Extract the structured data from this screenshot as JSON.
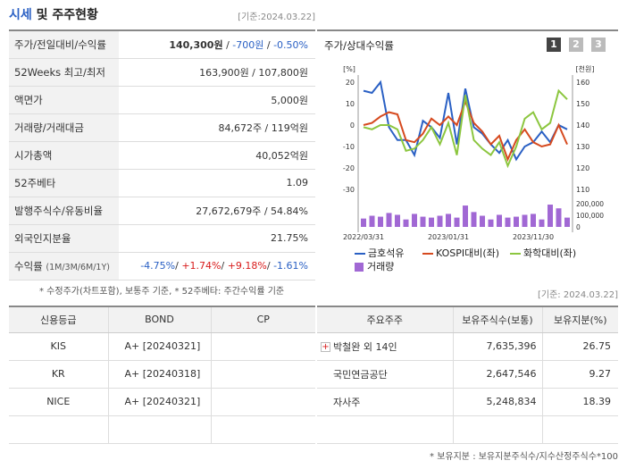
{
  "header": {
    "title_main": "시세",
    "title_rest": " 및 주주현황",
    "date": "[기준:2024.03.22]"
  },
  "quote_rows": [
    {
      "label": "주가/전일대비/수익률",
      "value_parts": [
        {
          "text": "140,300원",
          "cls": "strong"
        },
        {
          "text": " / ",
          "cls": ""
        },
        {
          "text": "-700원",
          "cls": "down"
        },
        {
          "text": " / ",
          "cls": ""
        },
        {
          "text": "-0.50%",
          "cls": "down"
        }
      ]
    },
    {
      "label": "52Weeks 최고/최저",
      "value": "163,900원 / 107,800원"
    },
    {
      "label": "액면가",
      "value": "5,000원"
    },
    {
      "label": "거래량/거래대금",
      "value": "84,672주 / 119억원"
    },
    {
      "label": "시가총액",
      "value": "40,052억원"
    },
    {
      "label": "52주베타",
      "value": "1.09"
    },
    {
      "label": "발행주식수/유동비율",
      "value": "27,672,679주 / 54.84%"
    },
    {
      "label": "외국인지분율",
      "value": "21.75%"
    },
    {
      "label": "수익률",
      "label_sub": "(1M/3M/6M/1Y)",
      "value_parts": [
        {
          "text": "-4.75%",
          "cls": "down"
        },
        {
          "text": "/ ",
          "cls": ""
        },
        {
          "text": "+1.74%",
          "cls": "up"
        },
        {
          "text": "/ ",
          "cls": ""
        },
        {
          "text": "+9.18%",
          "cls": "up"
        },
        {
          "text": "/ ",
          "cls": ""
        },
        {
          "text": "-1.61%",
          "cls": "down"
        }
      ]
    }
  ],
  "note_left": "* 수정주가(차트포함), 보통주 기준, * 52주베타: 주간수익률 기준",
  "chart": {
    "title": "주가/상대수익률",
    "pages": [
      "1",
      "2",
      "3"
    ],
    "left_unit": "[%]",
    "right_unit": "[천원]",
    "left_ticks": [
      "20",
      "10",
      "0",
      "-10",
      "-20",
      "-30"
    ],
    "right_ticks": [
      "160",
      "150",
      "140",
      "130",
      "120",
      "110"
    ],
    "vol_ticks": [
      "200,000",
      "100,000",
      "0"
    ],
    "x_ticks": [
      "2022/03/31",
      "2023/01/31",
      "2023/11/30"
    ],
    "legend": [
      {
        "name": "금호석유",
        "color": "#2a60c4"
      },
      {
        "name": "KOSPI대비(좌)",
        "color": "#d64a1f"
      },
      {
        "name": "화학대비(좌)",
        "color": "#8cc63f"
      },
      {
        "name": "거래량",
        "color": "#a168d4"
      }
    ]
  },
  "chart_data": {
    "type": "line",
    "x": [
      "2022/03/31",
      "",
      "",
      "",
      "",
      "",
      "",
      "",
      "",
      "",
      "2023/01/31",
      "",
      "",
      "",
      "",
      "",
      "",
      "",
      "",
      "",
      "2023/11/30",
      "",
      "",
      "",
      ""
    ],
    "ylim_left": [
      -30,
      20
    ],
    "ylim_right": [
      110,
      160
    ],
    "series": [
      {
        "name": "금호석유",
        "axis": "right",
        "values": [
          156,
          155,
          160,
          139,
          133,
          133,
          126,
          142,
          139,
          134,
          155,
          131,
          157,
          139,
          136,
          131,
          127,
          133,
          124,
          130,
          132,
          137,
          132,
          140,
          138
        ]
      },
      {
        "name": "KOSPI대비(좌)",
        "axis": "left",
        "values": [
          0,
          1,
          4,
          6,
          5,
          -7,
          -8,
          -4,
          3,
          0,
          4,
          0,
          11,
          1,
          -3,
          -9,
          -5,
          -16,
          -7,
          -2,
          -8,
          -10,
          -9,
          0,
          -9
        ]
      },
      {
        "name": "화학대비(좌)",
        "axis": "left",
        "values": [
          -1,
          -2,
          0,
          0,
          -2,
          -12,
          -11,
          -7,
          -1,
          -9,
          1,
          -14,
          14,
          -7,
          -11,
          -14,
          -8,
          -19,
          -10,
          3,
          6,
          -2,
          1,
          16,
          12
        ]
      },
      {
        "name": "거래량",
        "axis": "volume",
        "values": [
          90000,
          120000,
          110000,
          150000,
          130000,
          80000,
          140000,
          110000,
          100000,
          120000,
          140000,
          100000,
          230000,
          160000,
          120000,
          80000,
          130000,
          100000,
          110000,
          130000,
          140000,
          80000,
          240000,
          200000,
          100000
        ]
      }
    ]
  },
  "date2": "[기준: 2024.03.22]",
  "credit": {
    "headers": [
      "신용등급",
      "BOND",
      "CP"
    ],
    "rows": [
      [
        "KIS",
        "A+   [20240321]",
        ""
      ],
      [
        "KR",
        "A+   [20240318]",
        ""
      ],
      [
        "NICE",
        "A+   [20240321]",
        ""
      ],
      [
        "",
        "",
        ""
      ]
    ]
  },
  "holders": {
    "headers": [
      "주요주주",
      "보유주식수(보통)",
      "보유지분(%)"
    ],
    "rows": [
      {
        "name": "박철완 외 14인",
        "shares": "7,635,396",
        "pct": "26.75",
        "expand": "+"
      },
      {
        "name": "국민연금공단",
        "shares": "2,647,546",
        "pct": "9.27"
      },
      {
        "name": "자사주",
        "shares": "5,248,834",
        "pct": "18.39"
      },
      {
        "name": "",
        "shares": "",
        "pct": ""
      }
    ]
  },
  "note_right": "* 보유지분 : 보유지분주식수/지수산정주식수*100"
}
